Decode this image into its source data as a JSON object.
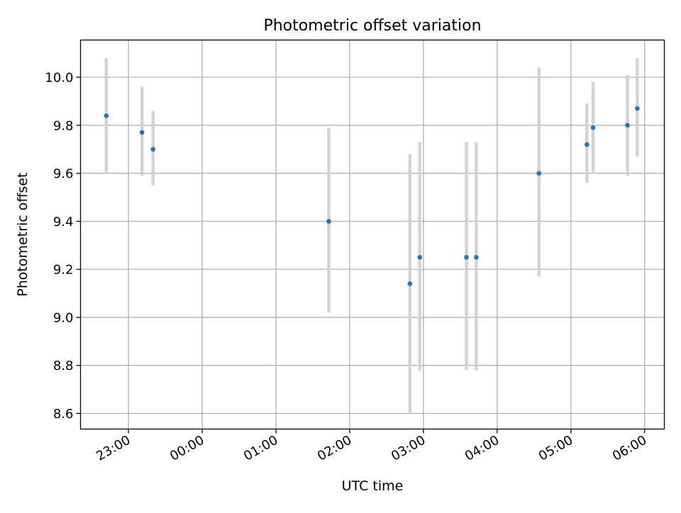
{
  "chart_data": {
    "type": "scatter",
    "title": "Photometric offset variation",
    "xlabel": "UTC time",
    "ylabel": "Photometric offset",
    "x_axis_format": "time",
    "xlim": [
      "22:21",
      "06:16"
    ],
    "ylim": [
      8.535,
      10.155
    ],
    "grid": true,
    "x_ticks": [
      "23:00",
      "00:00",
      "01:00",
      "02:00",
      "03:00",
      "04:00",
      "05:00",
      "06:00"
    ],
    "y_ticks": [
      "8.6",
      "8.8",
      "9.0",
      "9.2",
      "9.4",
      "9.6",
      "9.8",
      "10.0"
    ],
    "colors": {
      "point": "#1f77b4",
      "errorbar": "#d3d3d3",
      "grid": "#b0b0b0"
    },
    "series": [
      {
        "points": [
          {
            "time": "22:42",
            "value": 9.84,
            "low": 9.6,
            "high": 10.08
          },
          {
            "time": "23:11",
            "value": 9.77,
            "low": 9.59,
            "high": 9.96
          },
          {
            "time": "23:20",
            "value": 9.7,
            "low": 9.55,
            "high": 9.86
          },
          {
            "time": "01:43",
            "value": 9.4,
            "low": 9.02,
            "high": 9.79
          },
          {
            "time": "02:49",
            "value": 9.14,
            "low": 8.6,
            "high": 9.68
          },
          {
            "time": "02:57",
            "value": 9.25,
            "low": 8.78,
            "high": 9.73
          },
          {
            "time": "03:35",
            "value": 9.25,
            "low": 8.78,
            "high": 9.73
          },
          {
            "time": "03:43",
            "value": 9.25,
            "low": 8.78,
            "high": 9.73
          },
          {
            "time": "04:34",
            "value": 9.6,
            "low": 9.17,
            "high": 10.04
          },
          {
            "time": "05:13",
            "value": 9.72,
            "low": 9.56,
            "high": 9.89
          },
          {
            "time": "05:18",
            "value": 9.79,
            "low": 9.6,
            "high": 9.98
          },
          {
            "time": "05:46",
            "value": 9.8,
            "low": 9.59,
            "high": 10.01
          },
          {
            "time": "05:54",
            "value": 9.87,
            "low": 9.67,
            "high": 10.08
          }
        ]
      }
    ]
  }
}
